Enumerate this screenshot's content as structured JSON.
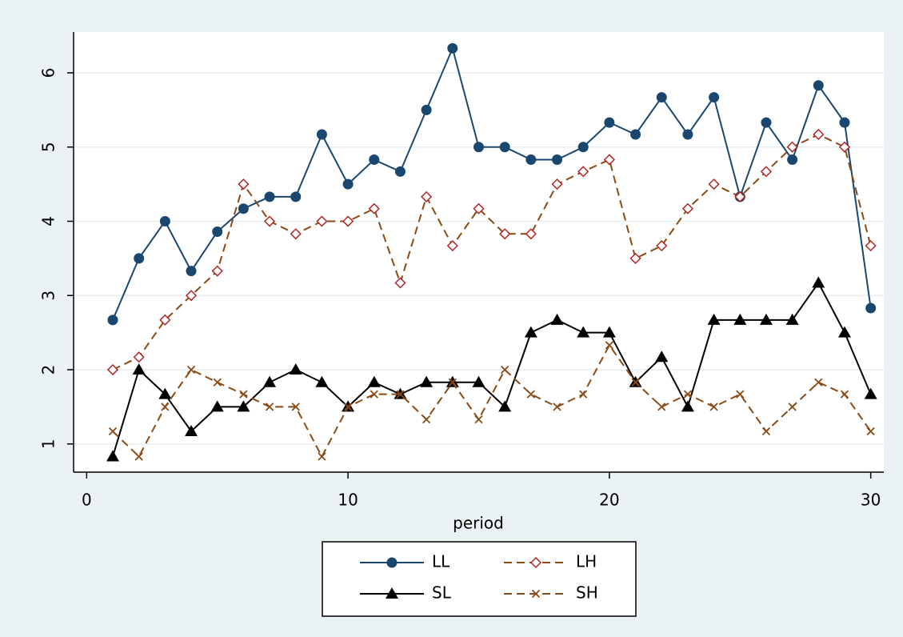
{
  "chart_data": {
    "type": "line",
    "xlabel": "period",
    "x": [
      1,
      2,
      3,
      4,
      5,
      6,
      7,
      8,
      9,
      10,
      11,
      12,
      13,
      14,
      15,
      16,
      17,
      18,
      19,
      20,
      21,
      22,
      23,
      24,
      25,
      26,
      27,
      28,
      29,
      30
    ],
    "xlim": [
      -0.5,
      30.5
    ],
    "xticks": [
      0,
      10,
      20,
      30
    ],
    "ylim": [
      0.62,
      6.55
    ],
    "yticks": [
      1,
      2,
      3,
      4,
      5,
      6
    ],
    "grid": true,
    "legend": "bottom",
    "series": [
      {
        "name": "LL",
        "color": "#1a476f",
        "marker": "circle",
        "dash": false,
        "values": [
          2.67,
          3.5,
          4,
          3.33,
          3.86,
          4.17,
          4.33,
          4.33,
          5.17,
          4.5,
          4.83,
          4.67,
          5.5,
          6.33,
          5,
          5,
          4.83,
          4.83,
          5,
          5.33,
          5.17,
          5.67,
          5.17,
          5.67,
          4.33,
          5.33,
          4.83,
          5.83,
          5.33,
          2.83
        ]
      },
      {
        "name": "LH",
        "color": "#8a4a14",
        "marker": "diamond",
        "dash": true,
        "values": [
          2,
          2.17,
          2.67,
          3,
          3.33,
          4.5,
          4,
          3.83,
          4,
          4,
          4.17,
          3.17,
          4.33,
          3.67,
          4.17,
          3.83,
          3.83,
          4.5,
          4.67,
          4.83,
          3.5,
          3.67,
          4.17,
          4.5,
          4.33,
          4.67,
          5,
          5.17,
          5,
          3.67
        ]
      },
      {
        "name": "SL",
        "color": "#000000",
        "marker": "triangle",
        "dash": false,
        "values": [
          0.83,
          2,
          1.67,
          1.17,
          1.5,
          1.5,
          1.83,
          2,
          1.83,
          1.5,
          1.83,
          1.67,
          1.83,
          1.83,
          1.83,
          1.5,
          2.5,
          2.67,
          2.5,
          2.5,
          1.83,
          2.17,
          1.5,
          2.67,
          2.67,
          2.67,
          2.67,
          3.17,
          2.5,
          1.67
        ]
      },
      {
        "name": "SH",
        "color": "#8a4a14",
        "marker": "x",
        "dash": true,
        "values": [
          1.17,
          0.83,
          1.5,
          2,
          1.83,
          1.67,
          1.5,
          1.5,
          0.83,
          1.5,
          1.67,
          1.67,
          1.33,
          1.83,
          1.33,
          2,
          1.67,
          1.5,
          1.67,
          2.33,
          1.83,
          1.5,
          1.67,
          1.5,
          1.67,
          1.17,
          1.5,
          1.83,
          1.67,
          1.17
        ]
      }
    ]
  }
}
